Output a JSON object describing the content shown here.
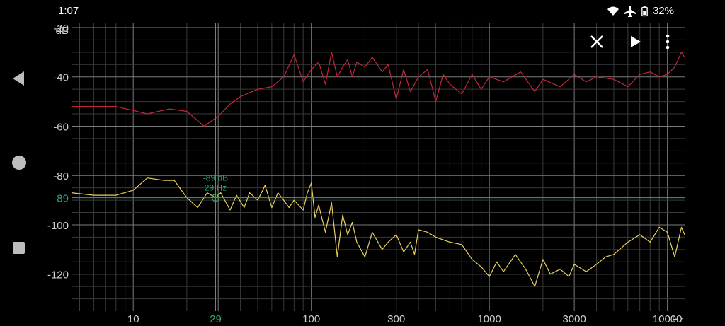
{
  "status_bar": {
    "time": "1:07",
    "battery": "32%",
    "icons": [
      "wifi-icon",
      "airplane-icon",
      "battery-icon"
    ]
  },
  "nav_bar": {
    "buttons": [
      "back-icon",
      "home-icon",
      "recents-icon"
    ]
  },
  "toolbar": {
    "actions": [
      "close-icon",
      "play-icon",
      "more-vert-icon"
    ]
  },
  "colors": {
    "red_trace": "#c0283a",
    "yellow_trace": "#e8d060",
    "cursor": "#2fa86e",
    "grid_major": "#7a7a7a",
    "grid_minor": "#3a3a3a",
    "text": "#d0d0d0"
  },
  "chart_data": {
    "type": "line",
    "x_scale": "log",
    "y_unit_label": "dB",
    "x_unit_label": "Hz",
    "xlim": [
      4.5,
      12500
    ],
    "ylim": [
      -135,
      -18
    ],
    "x_ticks": [
      "10",
      "29",
      "100",
      "300",
      "1000",
      "3000",
      "10000"
    ],
    "y_ticks": [
      "-20",
      "-40",
      "-60",
      "-80",
      "-100",
      "-120"
    ],
    "cursor": {
      "x_hz": 29,
      "y_db": -89,
      "x_label": "29",
      "y_label": "-89",
      "readout_db": "-89 dB",
      "readout_hz": "29 Hz"
    },
    "series": [
      {
        "color": "#c0283a",
        "x": [
          4.5,
          8,
          12,
          16,
          20,
          25,
          30,
          35,
          40,
          50,
          60,
          70,
          80,
          90,
          100,
          110,
          120,
          130,
          140,
          150,
          160,
          170,
          180,
          200,
          220,
          250,
          270,
          300,
          330,
          360,
          400,
          450,
          500,
          550,
          600,
          700,
          800,
          900,
          1000,
          1200,
          1500,
          1800,
          2000,
          2500,
          3000,
          3500,
          4000,
          5000,
          6000,
          7000,
          8000,
          9000,
          10000,
          11000,
          12000,
          12500
        ],
        "y": [
          -52,
          -52,
          -55,
          -53,
          -54,
          -60,
          -56,
          -51,
          -48,
          -45,
          -44,
          -40,
          -31,
          -42,
          -37,
          -34,
          -43,
          -30,
          -40,
          -36,
          -33,
          -40,
          -34,
          -36,
          -32,
          -38,
          -35,
          -49,
          -37,
          -46,
          -40,
          -37,
          -50,
          -39,
          -43,
          -47,
          -39,
          -45,
          -40,
          -42,
          -38,
          -46,
          -41,
          -44,
          -39,
          -42,
          -40,
          -41,
          -44,
          -39,
          -38,
          -40,
          -39,
          -36,
          -30,
          -32
        ]
      },
      {
        "color": "#e8d060",
        "x": [
          4.5,
          6,
          8,
          10,
          12,
          15,
          17,
          20,
          23,
          26,
          29,
          31,
          35,
          38,
          42,
          45,
          50,
          55,
          60,
          65,
          70,
          75,
          80,
          90,
          95,
          100,
          105,
          110,
          120,
          130,
          140,
          150,
          160,
          170,
          180,
          200,
          220,
          250,
          270,
          300,
          330,
          360,
          380,
          400,
          450,
          500,
          600,
          700,
          800,
          900,
          1000,
          1100,
          1200,
          1400,
          1600,
          1800,
          2000,
          2200,
          2500,
          2800,
          3000,
          3500,
          4000,
          4500,
          5000,
          6000,
          7000,
          8000,
          9000,
          10000,
          11000,
          12000,
          12500
        ],
        "y": [
          -87,
          -88,
          -88,
          -86,
          -81,
          -82,
          -82,
          -89,
          -93,
          -87,
          -89,
          -87,
          -94,
          -88,
          -93,
          -87,
          -90,
          -84,
          -93,
          -87,
          -90,
          -93,
          -90,
          -94,
          -87,
          -83,
          -97,
          -92,
          -103,
          -91,
          -113,
          -96,
          -104,
          -99,
          -107,
          -113,
          -103,
          -110,
          -107,
          -104,
          -111,
          -107,
          -112,
          -102,
          -103,
          -105,
          -107,
          -108,
          -114,
          -117,
          -121,
          -115,
          -119,
          -112,
          -118,
          -125,
          -114,
          -120,
          -118,
          -121,
          -116,
          -119,
          -116,
          -113,
          -112,
          -107,
          -104,
          -107,
          -101,
          -103,
          -113,
          -101,
          -104
        ]
      }
    ]
  }
}
